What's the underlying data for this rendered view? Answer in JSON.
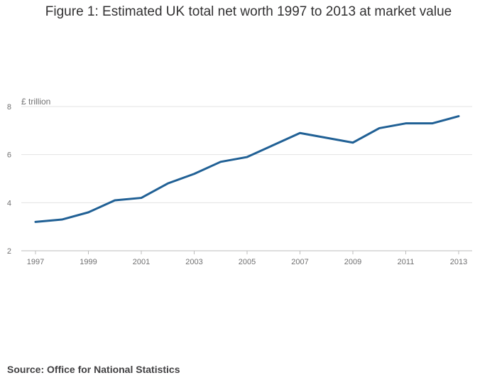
{
  "title": "Figure 1: Estimated UK total net worth 1997 to 2013 at market value",
  "source": "Source: Office for National Statistics",
  "colors": {
    "line": "#206095",
    "grid": "#e3e3e3",
    "axis": "#bcbcbc"
  },
  "chart_data": {
    "type": "line",
    "title": "Figure 1: Estimated UK total net worth 1997 to 2013 at market value",
    "ylabel": "£ trillion",
    "xlabel": "",
    "x": [
      1997,
      1998,
      1999,
      2000,
      2001,
      2002,
      2003,
      2004,
      2005,
      2006,
      2007,
      2008,
      2009,
      2010,
      2011,
      2012,
      2013
    ],
    "series": [
      {
        "name": "UK total net worth",
        "values": [
          3.2,
          3.3,
          3.6,
          4.1,
          4.2,
          4.8,
          5.2,
          5.7,
          5.9,
          6.4,
          6.9,
          6.7,
          6.5,
          7.1,
          7.3,
          7.3,
          7.6
        ]
      }
    ],
    "xticks": [
      "1997",
      "1999",
      "2001",
      "2003",
      "2005",
      "2007",
      "2009",
      "2011",
      "2013"
    ],
    "yticks": [
      "2",
      "4",
      "6",
      "8"
    ],
    "xlim": [
      1997,
      2013
    ],
    "ylim": [
      2,
      8
    ],
    "grid": true,
    "legend": "none"
  }
}
